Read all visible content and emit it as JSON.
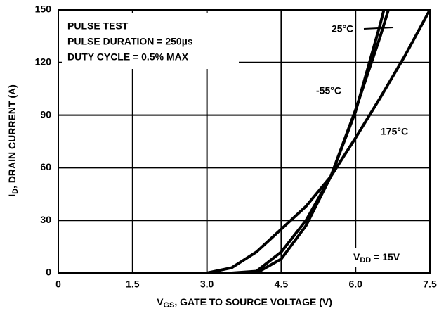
{
  "chart_data": {
    "type": "line",
    "x_label": {
      "main": "V",
      "sub": "GS",
      "rest": ", GATE TO SOURCE VOLTAGE (V)"
    },
    "y_label": {
      "main": "I",
      "sub": "D",
      "rest": ", DRAIN CURRENT (A)"
    },
    "annotations": [
      "PULSE TEST",
      "PULSE DURATION = 250µs",
      "DUTY CYCLE = 0.5% MAX"
    ],
    "vdd_label": {
      "main": "V",
      "sub": "DD",
      "rest": " = 15V"
    },
    "x": [
      0,
      3.0,
      3.5,
      4.0,
      4.5,
      5.0,
      5.5,
      6.0,
      6.5,
      6.75,
      7.0,
      7.5
    ],
    "series": [
      {
        "name": "25°C",
        "color": "#000000",
        "values": [
          0,
          0,
          0,
          1,
          12,
          30,
          55,
          92,
          142,
          170,
          null,
          null
        ]
      },
      {
        "name": "-55°C",
        "color": "#000000",
        "values": [
          0,
          0,
          0,
          0,
          8,
          27,
          55,
          93,
          135,
          158,
          null,
          null
        ]
      },
      {
        "name": "175°C",
        "color": "#000000",
        "values": [
          0,
          0,
          3,
          12,
          25,
          38,
          55,
          77,
          100,
          112,
          124,
          150
        ]
      }
    ],
    "xlim": [
      0,
      7.5
    ],
    "ylim": [
      0,
      150
    ],
    "xticks": [
      0,
      1.5,
      {
        "value": 3,
        "label": "3.0"
      },
      4.5,
      {
        "value": 6,
        "label": "6.0"
      },
      7.5
    ],
    "yticks": [
      0,
      30,
      60,
      90,
      120,
      150
    ],
    "grid": true
  }
}
